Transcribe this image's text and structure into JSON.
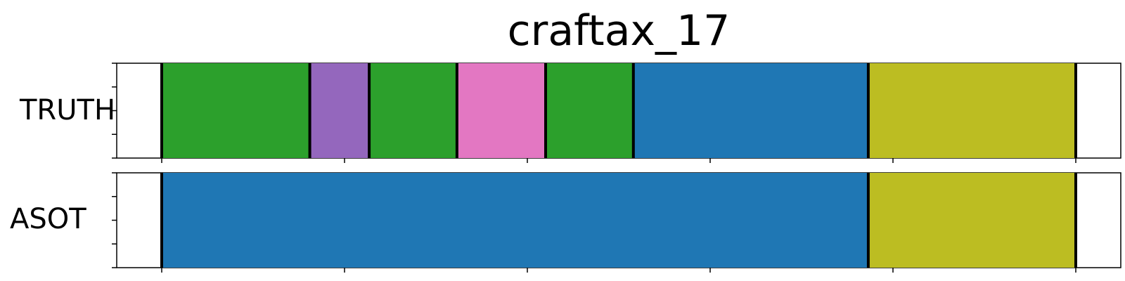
{
  "chart_data": {
    "type": "segment_timeline",
    "title": "craftax_17",
    "x_range": [
      0,
      100
    ],
    "tracks": [
      {
        "label": "TRUTH",
        "segments": [
          {
            "start": 0,
            "end": 16.2,
            "color": "#2ca02c"
          },
          {
            "start": 16.2,
            "end": 22.7,
            "color": "#9467bd"
          },
          {
            "start": 22.7,
            "end": 32.3,
            "color": "#2ca02c"
          },
          {
            "start": 32.3,
            "end": 42.0,
            "color": "#e377c2"
          },
          {
            "start": 42.0,
            "end": 51.6,
            "color": "#2ca02c"
          },
          {
            "start": 51.6,
            "end": 77.3,
            "color": "#1f77b4"
          },
          {
            "start": 77.3,
            "end": 100,
            "color": "#bcbd22"
          }
        ]
      },
      {
        "label": "ASOT",
        "segments": [
          {
            "start": 0,
            "end": 77.3,
            "color": "#1f77b4"
          },
          {
            "start": 77.3,
            "end": 100,
            "color": "#bcbd22"
          }
        ]
      }
    ]
  }
}
